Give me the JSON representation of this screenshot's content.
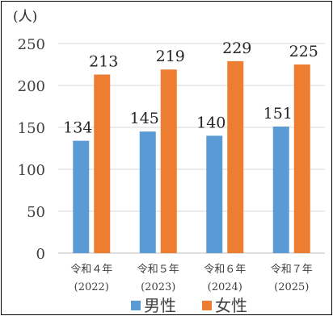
{
  "chart_data": {
    "type": "bar",
    "unit_label": "(人)",
    "categories": [
      {
        "line1": "令和４年",
        "line2": "(2022)"
      },
      {
        "line1": "令和５年",
        "line2": "(2023)"
      },
      {
        "line1": "令和６年",
        "line2": "(2024)"
      },
      {
        "line1": "令和７年",
        "line2": "(2025)"
      }
    ],
    "series": [
      {
        "name": "男性",
        "color": "#5b9bd5",
        "values": [
          134,
          145,
          140,
          151
        ]
      },
      {
        "name": "女性",
        "color": "#ed7d31",
        "values": [
          213,
          219,
          229,
          225
        ]
      }
    ],
    "ylim": [
      0,
      250
    ],
    "yticks": [
      0,
      50,
      100,
      150,
      200,
      250
    ],
    "grid": true,
    "legend_position": "bottom"
  }
}
